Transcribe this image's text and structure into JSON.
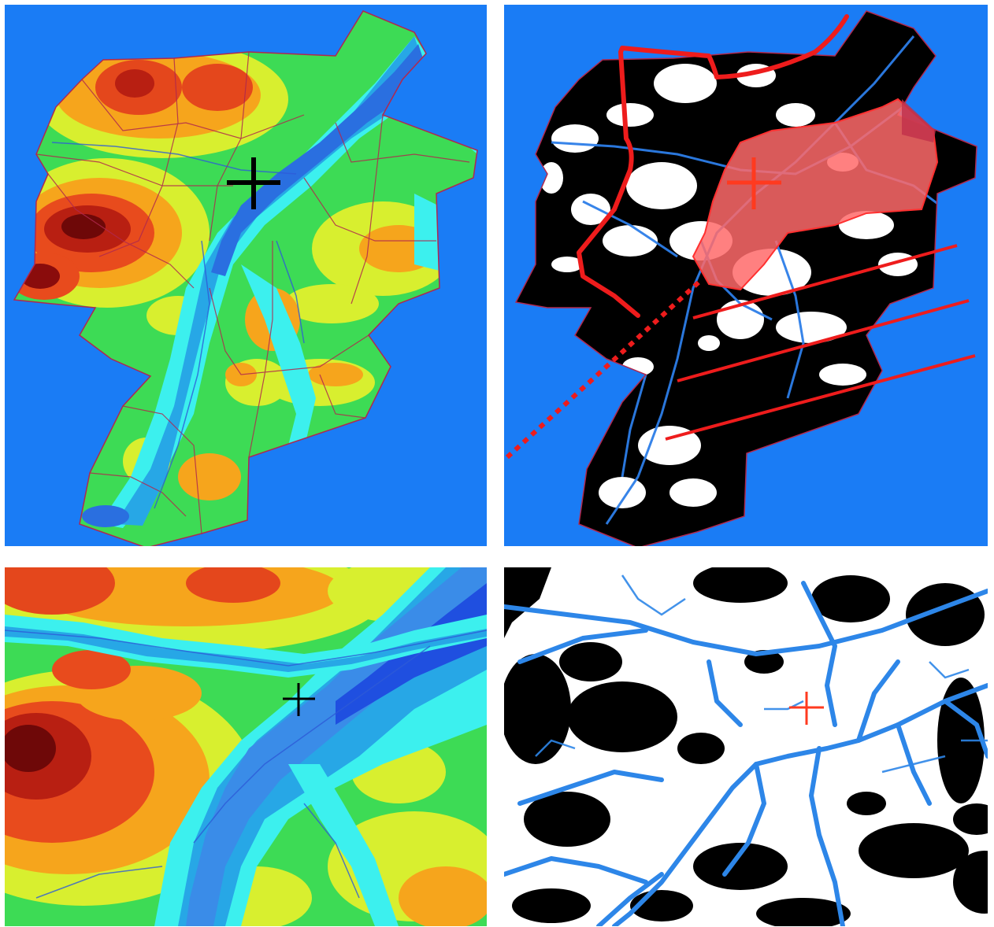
{
  "figure": {
    "panels": [
      {
        "id": "elevation-map-full",
        "kind": "colored elevation map with district boundaries",
        "marker": "cross",
        "marker_color": "#000000"
      },
      {
        "id": "binary-map-full",
        "kind": "black/white classification map with hydrography and overlays",
        "marker": "cross",
        "marker_color": "#ff3a1f"
      },
      {
        "id": "elevation-map-zoom",
        "kind": "colored elevation map (zoomed)",
        "marker": "cross",
        "marker_color": "#000000"
      },
      {
        "id": "binary-map-zoom",
        "kind": "black/white classification map (zoomed) with hydrography",
        "marker": "cross",
        "marker_color": "#ff3a1f"
      }
    ],
    "colors": {
      "background": "#1a7cf5",
      "water": "#2d7ee8",
      "low": "#27a7e6",
      "mid_low": "#3cf0ee",
      "mid": "#38e25a",
      "mid_high": "#d8f232",
      "high": "#f5a51c",
      "higher": "#ee3c18",
      "highest": "#7a0a0a",
      "boundary": "#b0284e",
      "overlay_red": "#ff2020",
      "overlay_fill": "#ff6a6a"
    }
  }
}
